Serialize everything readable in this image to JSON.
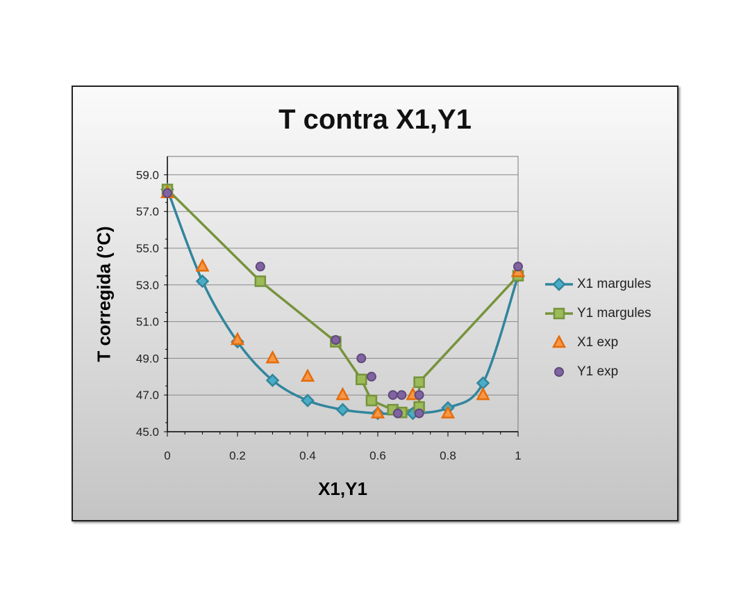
{
  "chart_data": {
    "type": "scatter",
    "title": "T contra X1,Y1",
    "xlabel": "X1,Y1",
    "ylabel": "T corregida (°C)",
    "xlim": [
      0,
      1
    ],
    "ylim": [
      45,
      60
    ],
    "xticks": [
      "0",
      "0.2",
      "0.4",
      "0.6",
      "0.8",
      "1"
    ],
    "yticks": [
      "45.0",
      "47.0",
      "49.0",
      "51.0",
      "53.0",
      "55.0",
      "57.0",
      "59.0"
    ],
    "grid": "horizontal",
    "legend": "right",
    "series": [
      {
        "name": "X1 margules",
        "marker": "diamond",
        "line": "smooth",
        "color": "#31859c",
        "points": [
          [
            0,
            58.2
          ],
          [
            0.1,
            53.2
          ],
          [
            0.2,
            49.9
          ],
          [
            0.3,
            47.8
          ],
          [
            0.4,
            46.7
          ],
          [
            0.5,
            46.2
          ],
          [
            0.6,
            46.0
          ],
          [
            0.7,
            46.0
          ],
          [
            0.8,
            46.3
          ],
          [
            0.9,
            47.65
          ],
          [
            1,
            53.5
          ]
        ]
      },
      {
        "name": "Y1 margules",
        "marker": "square",
        "line": "straight",
        "color": "#77933c",
        "points": [
          [
            0,
            58.2
          ],
          [
            0.265,
            53.2
          ],
          [
            0.48,
            49.9
          ],
          [
            0.553,
            47.85
          ],
          [
            0.582,
            46.7
          ],
          [
            0.643,
            46.2
          ],
          [
            0.668,
            46.05
          ],
          [
            0.718,
            46.35
          ],
          [
            0.718,
            47.7
          ],
          [
            1,
            53.5
          ]
        ]
      },
      {
        "name": "X1 exp",
        "marker": "triangle",
        "line": "none",
        "color": "#e46c0a",
        "points": [
          [
            0,
            58
          ],
          [
            0.1,
            54
          ],
          [
            0.2,
            50
          ],
          [
            0.3,
            49
          ],
          [
            0.4,
            48
          ],
          [
            0.5,
            47
          ],
          [
            0.6,
            46
          ],
          [
            0.7,
            47
          ],
          [
            0.8,
            46
          ],
          [
            0.9,
            47
          ],
          [
            1,
            53.7
          ]
        ]
      },
      {
        "name": "Y1 exp",
        "marker": "circle",
        "line": "none",
        "color": "#604a7b",
        "points": [
          [
            0,
            58
          ],
          [
            0.265,
            54
          ],
          [
            0.48,
            50
          ],
          [
            0.553,
            49
          ],
          [
            0.582,
            48
          ],
          [
            0.643,
            47
          ],
          [
            0.668,
            47
          ],
          [
            0.718,
            47
          ],
          [
            0.657,
            46
          ],
          [
            0.718,
            46
          ],
          [
            1,
            54
          ]
        ]
      }
    ]
  }
}
